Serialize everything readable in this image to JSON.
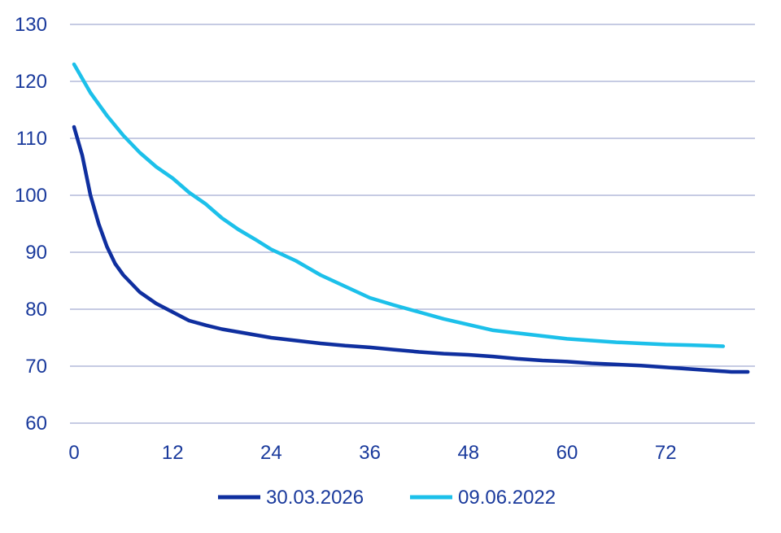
{
  "chart_data": {
    "type": "line",
    "title": "",
    "xlabel": "",
    "ylabel": "",
    "xlim": [
      0,
      82
    ],
    "ylim": [
      60,
      130
    ],
    "x_ticks": [
      0,
      12,
      24,
      36,
      48,
      60,
      72
    ],
    "y_ticks": [
      60,
      70,
      80,
      90,
      100,
      110,
      120,
      130
    ],
    "grid": "horizontal",
    "legend_position": "bottom-center",
    "series": [
      {
        "name": "30.03.2026",
        "color": "#0f2f9f",
        "x": [
          0,
          1,
          2,
          3,
          4,
          5,
          6,
          7,
          8,
          9,
          10,
          12,
          14,
          16,
          18,
          20,
          22,
          24,
          27,
          30,
          33,
          36,
          39,
          42,
          45,
          48,
          51,
          54,
          57,
          60,
          63,
          66,
          69,
          72,
          75,
          78,
          80,
          82
        ],
        "values": [
          112,
          107,
          100,
          95,
          91,
          88,
          86,
          84.5,
          83,
          82,
          81,
          79.5,
          78,
          77.2,
          76.5,
          76,
          75.5,
          75,
          74.5,
          74,
          73.6,
          73.3,
          72.9,
          72.5,
          72.2,
          72,
          71.7,
          71.3,
          71,
          70.8,
          70.5,
          70.3,
          70.1,
          69.8,
          69.5,
          69.2,
          69,
          69
        ]
      },
      {
        "name": "09.06.2022",
        "color": "#1cc0ea",
        "x": [
          0,
          2,
          4,
          6,
          8,
          10,
          12,
          14,
          16,
          18,
          20,
          22,
          24,
          27,
          30,
          33,
          36,
          39,
          42,
          45,
          48,
          51,
          54,
          57,
          60,
          63,
          66,
          69,
          72,
          75,
          77,
          79
        ],
        "values": [
          123,
          118,
          114,
          110.5,
          107.5,
          105,
          103,
          100.5,
          98.5,
          96,
          94,
          92.3,
          90.5,
          88.5,
          86,
          84,
          82,
          80.7,
          79.5,
          78.3,
          77.3,
          76.3,
          75.8,
          75.3,
          74.8,
          74.5,
          74.2,
          74,
          73.8,
          73.7,
          73.6,
          73.5
        ]
      }
    ]
  }
}
